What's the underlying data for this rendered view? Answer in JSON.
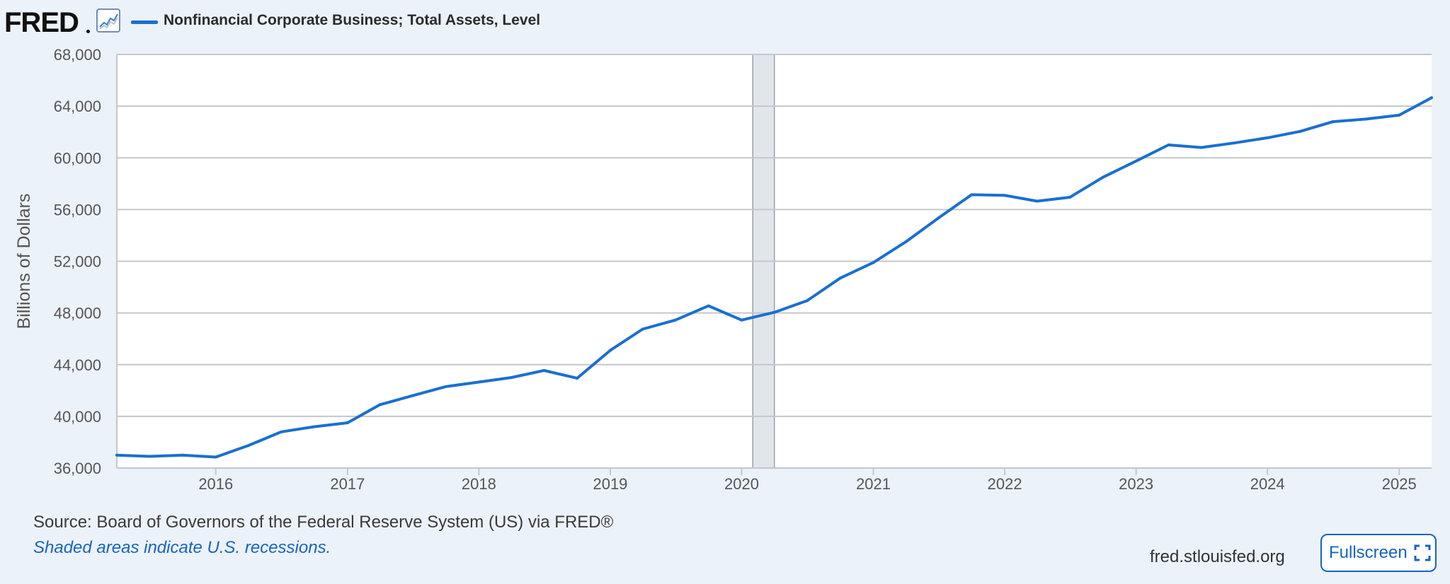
{
  "header": {
    "logo_text": "FRED",
    "series_title": "Nonfinancial Corporate Business; Total Assets, Level",
    "icons": [
      "fred-logo",
      "graph-icon",
      "legend-line-icon"
    ]
  },
  "footer": {
    "source": "Source: Board of Governors of the Federal Reserve System (US) via FRED®",
    "note": "Shaded areas indicate U.S. recessions.",
    "url": "fred.stlouisfed.org",
    "fullscreen_label": "Fullscreen",
    "fullscreen_icon": "expand-icon"
  },
  "colors": {
    "line": "#1a6fd1",
    "background": "#ecf2fa",
    "plot_background": "#ffffff",
    "recession": "#e1e5ec",
    "grid": "#c4c7cc"
  },
  "chart_data": {
    "type": "line",
    "title": "Nonfinancial Corporate Business; Total Assets, Level",
    "xlabel": "",
    "ylabel": "Billions of Dollars",
    "ylim": [
      36000,
      68000
    ],
    "xlim": [
      "2015-04-01",
      "2025-04-01"
    ],
    "yticks": [
      "36,000",
      "40,000",
      "44,000",
      "48,000",
      "52,000",
      "56,000",
      "60,000",
      "64,000",
      "68,000"
    ],
    "ytick_values": [
      36000,
      40000,
      44000,
      48000,
      52000,
      56000,
      60000,
      64000,
      68000
    ],
    "xticks": [
      "2016",
      "2017",
      "2018",
      "2019",
      "2020",
      "2021",
      "2022",
      "2023",
      "2024",
      "2025"
    ],
    "grid": true,
    "recessions": [
      {
        "start": "2020-02-01",
        "end": "2020-04-01"
      }
    ],
    "series": [
      {
        "name": "Nonfinancial Corporate Business; Total Assets, Level",
        "x": [
          "2015-04-01",
          "2015-07-01",
          "2015-10-01",
          "2016-01-01",
          "2016-04-01",
          "2016-07-01",
          "2016-10-01",
          "2017-01-01",
          "2017-04-01",
          "2017-07-01",
          "2017-10-01",
          "2018-01-01",
          "2018-04-01",
          "2018-07-01",
          "2018-10-01",
          "2019-01-01",
          "2019-04-01",
          "2019-07-01",
          "2019-10-01",
          "2020-01-01",
          "2020-04-01",
          "2020-07-01",
          "2020-10-01",
          "2021-01-01",
          "2021-04-01",
          "2021-07-01",
          "2021-10-01",
          "2022-01-01",
          "2022-04-01",
          "2022-07-01",
          "2022-10-01",
          "2023-01-01",
          "2023-04-01",
          "2023-07-01",
          "2023-10-01",
          "2024-01-01",
          "2024-04-01",
          "2024-07-01",
          "2024-10-01",
          "2025-01-01",
          "2025-04-01"
        ],
        "values": [
          37000,
          36900,
          37000,
          36850,
          37750,
          38800,
          39200,
          39500,
          40900,
          41600,
          42300,
          42650,
          43000,
          43550,
          42950,
          45100,
          46750,
          47450,
          48550,
          47450,
          48050,
          48950,
          50700,
          51900,
          53500,
          55350,
          57150,
          57100,
          56650,
          56950,
          58500,
          59750,
          61000,
          60800,
          61150,
          61550,
          62050,
          62800,
          63000,
          63300,
          64650
        ]
      }
    ]
  }
}
